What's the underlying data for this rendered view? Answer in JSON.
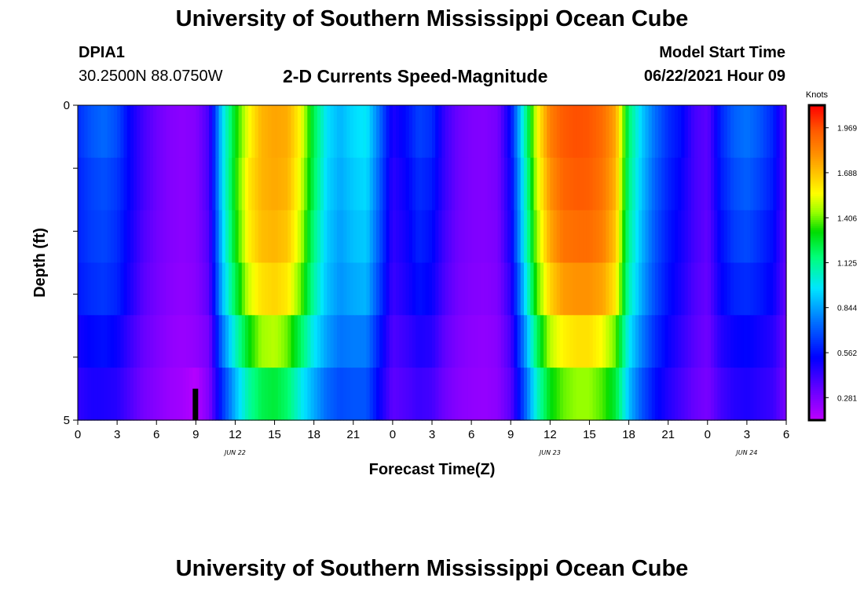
{
  "header": {
    "title": "University of Southern Mississippi Ocean Cube",
    "station_id": "DPIA1",
    "coordinates": "30.2500N  88.0750W",
    "subtitle": "2-D Currents Speed-Magnitude",
    "model_start_label": "Model Start Time",
    "model_start_value": "06/22/2021 Hour 09"
  },
  "footer": {
    "title": "University of Southern Mississippi Ocean Cube"
  },
  "chart_data": {
    "type": "heatmap",
    "title": "2-D Currents Speed-Magnitude",
    "xlabel": "Forecast Time(Z)",
    "ylabel": "Depth (ft)",
    "x_tick_labels": [
      "0",
      "3",
      "6",
      "9",
      "12",
      "15",
      "18",
      "21",
      "0",
      "3",
      "6",
      "9",
      "12",
      "15",
      "18",
      "21",
      "0",
      "3",
      "6"
    ],
    "x_range_hours": [
      0,
      54
    ],
    "date_labels": [
      {
        "text": "JUN 22",
        "hour": 12
      },
      {
        "text": "JUN 23",
        "hour": 36
      },
      {
        "text": "JUN 24",
        "hour": 51
      }
    ],
    "y_tick_labels": [
      "0",
      "5"
    ],
    "y_range_ft": [
      0,
      5
    ],
    "depth_levels_ft": [
      0,
      1,
      2,
      3,
      4,
      5
    ],
    "colorbar": {
      "unit": "Knots",
      "min": 0.14,
      "max": 2.11,
      "tick_values": [
        0.281,
        0.562,
        0.844,
        1.125,
        1.406,
        1.688,
        1.969
      ],
      "tick_labels": [
        "0.281",
        "0.562",
        "0.844",
        "1.125",
        "1.406",
        "1.688",
        "1.969"
      ]
    },
    "speed_knots_by_hour": {
      "hours": [
        0,
        1,
        2,
        3,
        4,
        5,
        6,
        7,
        8,
        9,
        10,
        11,
        12,
        13,
        14,
        15,
        16,
        17,
        18,
        19,
        20,
        21,
        22,
        23,
        24,
        25,
        26,
        27,
        28,
        29,
        30,
        31,
        32,
        33,
        34,
        35,
        36,
        37,
        38,
        39,
        40,
        41,
        42,
        43,
        44,
        45,
        46,
        47,
        48,
        49,
        50,
        51,
        52,
        53,
        54
      ],
      "rows": [
        [
          0.62,
          0.7,
          0.74,
          0.68,
          0.52,
          0.4,
          0.32,
          0.27,
          0.25,
          0.27,
          0.4,
          0.95,
          1.3,
          1.55,
          1.72,
          1.76,
          1.74,
          1.56,
          1.22,
          0.96,
          0.88,
          0.95,
          0.98,
          0.75,
          0.48,
          0.55,
          0.66,
          0.62,
          0.42,
          0.32,
          0.28,
          0.27,
          0.3,
          0.55,
          1.05,
          1.55,
          1.85,
          1.95,
          1.97,
          1.96,
          1.9,
          1.75,
          1.18,
          0.92,
          0.75,
          0.62,
          0.55,
          0.4,
          0.35,
          0.6,
          0.72,
          0.76,
          0.7,
          0.6,
          0.35
        ],
        [
          0.6,
          0.66,
          0.69,
          0.64,
          0.52,
          0.4,
          0.32,
          0.27,
          0.25,
          0.27,
          0.4,
          0.95,
          1.32,
          1.6,
          1.72,
          1.75,
          1.72,
          1.52,
          1.2,
          0.94,
          0.86,
          0.92,
          0.95,
          0.72,
          0.45,
          0.52,
          0.62,
          0.58,
          0.42,
          0.32,
          0.28,
          0.27,
          0.3,
          0.52,
          1.0,
          1.5,
          1.8,
          1.92,
          1.95,
          1.94,
          1.88,
          1.72,
          1.15,
          0.9,
          0.72,
          0.6,
          0.52,
          0.4,
          0.35,
          0.58,
          0.68,
          0.72,
          0.66,
          0.58,
          0.35
        ],
        [
          0.6,
          0.65,
          0.67,
          0.62,
          0.5,
          0.38,
          0.31,
          0.27,
          0.25,
          0.27,
          0.38,
          0.92,
          1.3,
          1.58,
          1.7,
          1.72,
          1.68,
          1.48,
          1.15,
          0.92,
          0.84,
          0.9,
          0.92,
          0.7,
          0.44,
          0.5,
          0.6,
          0.55,
          0.4,
          0.31,
          0.28,
          0.27,
          0.29,
          0.5,
          0.98,
          1.45,
          1.75,
          1.88,
          1.9,
          1.9,
          1.85,
          1.68,
          1.12,
          0.88,
          0.7,
          0.58,
          0.5,
          0.4,
          0.34,
          0.55,
          0.65,
          0.68,
          0.62,
          0.55,
          0.34
        ],
        [
          0.58,
          0.62,
          0.64,
          0.6,
          0.48,
          0.36,
          0.3,
          0.26,
          0.24,
          0.26,
          0.36,
          0.88,
          1.22,
          1.5,
          1.62,
          1.65,
          1.6,
          1.4,
          1.1,
          0.9,
          0.82,
          0.86,
          0.88,
          0.66,
          0.42,
          0.48,
          0.56,
          0.52,
          0.38,
          0.3,
          0.27,
          0.26,
          0.28,
          0.45,
          0.9,
          1.38,
          1.65,
          1.78,
          1.8,
          1.8,
          1.76,
          1.6,
          1.08,
          0.85,
          0.68,
          0.56,
          0.48,
          0.38,
          0.33,
          0.52,
          0.6,
          0.62,
          0.58,
          0.52,
          0.33
        ],
        [
          0.5,
          0.54,
          0.56,
          0.52,
          0.42,
          0.33,
          0.28,
          0.24,
          0.22,
          0.24,
          0.3,
          0.75,
          1.05,
          1.3,
          1.45,
          1.48,
          1.4,
          1.2,
          0.98,
          0.84,
          0.76,
          0.78,
          0.78,
          0.58,
          0.38,
          0.42,
          0.48,
          0.46,
          0.34,
          0.28,
          0.25,
          0.24,
          0.26,
          0.4,
          0.78,
          1.2,
          1.48,
          1.58,
          1.62,
          1.62,
          1.55,
          1.4,
          0.98,
          0.78,
          0.62,
          0.52,
          0.44,
          0.36,
          0.31,
          0.46,
          0.52,
          0.54,
          0.5,
          0.46,
          0.31
        ],
        [
          0.44,
          0.48,
          0.48,
          0.46,
          0.38,
          0.3,
          0.26,
          0.22,
          0.2,
          0.16,
          0.28,
          0.62,
          0.88,
          1.1,
          1.22,
          1.25,
          1.18,
          1.0,
          0.86,
          0.74,
          0.68,
          0.7,
          0.7,
          0.52,
          0.35,
          0.38,
          0.42,
          0.4,
          0.31,
          0.26,
          0.24,
          0.23,
          0.25,
          0.36,
          0.68,
          1.05,
          1.3,
          1.4,
          1.44,
          1.44,
          1.38,
          1.25,
          0.9,
          0.7,
          0.56,
          0.47,
          0.4,
          0.33,
          0.29,
          0.4,
          0.46,
          0.48,
          0.45,
          0.42,
          0.29
        ]
      ]
    },
    "marker": {
      "hour": 9,
      "depth_ft": [
        4.5,
        5
      ]
    }
  }
}
